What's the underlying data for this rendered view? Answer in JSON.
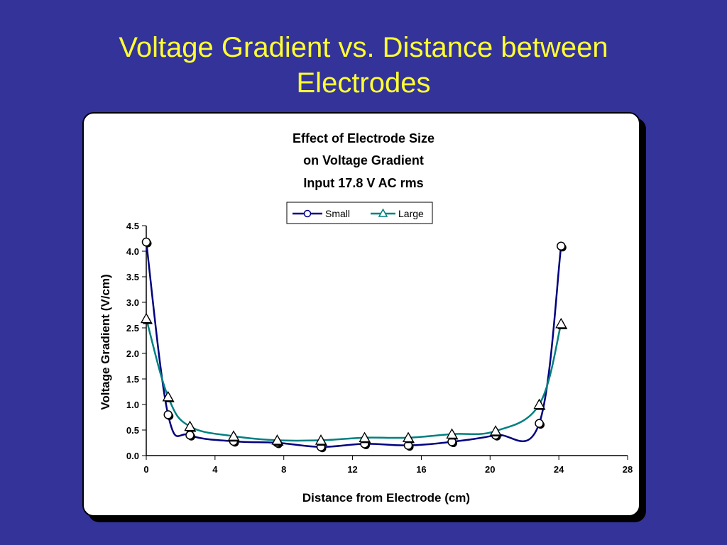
{
  "slide": {
    "title_lines": [
      "Voltage Gradient vs. Distance between",
      "Electrodes"
    ]
  },
  "colors": {
    "background": "#333399",
    "title": "#ffff33",
    "small_series": "#000080",
    "large_series": "#008080"
  },
  "chart_data": {
    "type": "line",
    "title_lines": [
      "Effect of Electrode Size",
      "on Voltage Gradient",
      "Input 17.8 V AC rms"
    ],
    "xlabel": "Distance from Electrode (cm)",
    "ylabel": "Voltage Gradient (V/cm)",
    "xlim": [
      0,
      28
    ],
    "ylim": [
      0,
      4.5
    ],
    "xticks": [
      "0",
      "4",
      "8",
      "12",
      "16",
      "20",
      "24",
      "28"
    ],
    "yticks": [
      "0.0",
      "0.5",
      "1.0",
      "1.5",
      "2.0",
      "2.5",
      "3.0",
      "3.5",
      "4.0",
      "4.5"
    ],
    "legend_position": "top-center",
    "grid": false,
    "series": [
      {
        "name": "Small",
        "marker": "circle",
        "x": [
          0,
          1.27,
          2.54,
          5.08,
          7.62,
          10.16,
          12.7,
          15.24,
          17.78,
          20.32,
          22.86,
          24.13
        ],
        "y": [
          4.18,
          0.8,
          0.4,
          0.28,
          0.25,
          0.17,
          0.23,
          0.2,
          0.27,
          0.4,
          0.63,
          4.1
        ]
      },
      {
        "name": "Large",
        "marker": "triangle",
        "x": [
          0,
          1.27,
          2.54,
          5.08,
          7.62,
          10.16,
          12.7,
          15.24,
          17.78,
          20.32,
          22.86,
          24.13
        ],
        "y": [
          2.68,
          1.15,
          0.57,
          0.38,
          0.3,
          0.3,
          0.35,
          0.35,
          0.42,
          0.48,
          1.0,
          2.58
        ]
      }
    ]
  }
}
